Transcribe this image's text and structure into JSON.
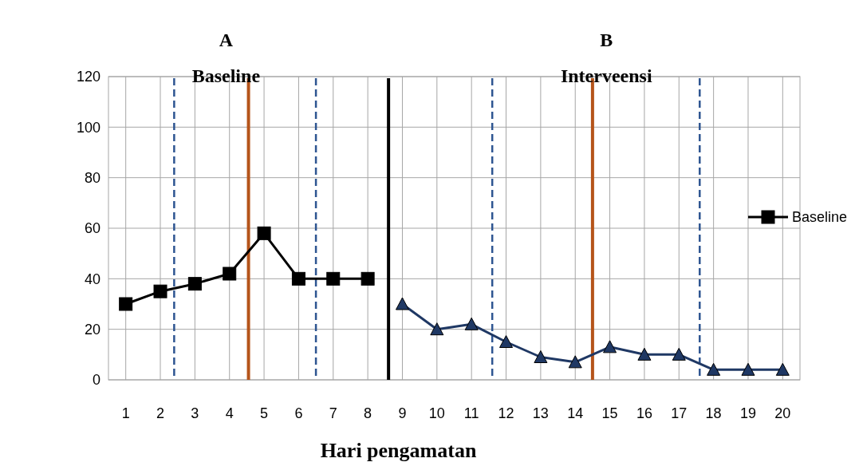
{
  "chart_data": {
    "type": "line",
    "xlabel": "Hari  pengamatan",
    "annotations": [
      "A",
      "Baseline",
      "B",
      "Interveensi"
    ],
    "xlim": [
      0.5,
      20.5
    ],
    "xticks": [
      1,
      2,
      3,
      4,
      5,
      6,
      7,
      8,
      9,
      10,
      11,
      12,
      13,
      14,
      15,
      16,
      17,
      18,
      19,
      20
    ],
    "ylim": [
      0,
      120
    ],
    "yticks": [
      0,
      20,
      40,
      60,
      80,
      100,
      120
    ],
    "series": [
      {
        "name": "Baseline",
        "color": "#000000",
        "marker": "square",
        "x": [
          1,
          2,
          3,
          4,
          5,
          6,
          7,
          8
        ],
        "values": [
          30,
          35,
          38,
          42,
          58,
          40,
          40,
          40
        ]
      },
      {
        "color": "#1f3864",
        "marker": "triangle",
        "x": [
          9,
          10,
          11,
          12,
          13,
          14,
          15,
          16,
          17,
          18,
          19,
          20
        ],
        "values": [
          30,
          20,
          22,
          15,
          9,
          7,
          13,
          10,
          10,
          4,
          4,
          4
        ]
      }
    ],
    "ref_lines": [
      {
        "axis": "x",
        "value": 2.4,
        "color": "#2e5591",
        "line_style": "dashed"
      },
      {
        "axis": "x",
        "value": 4.55,
        "color": "#b5541a",
        "line_style": "solid"
      },
      {
        "axis": "x",
        "value": 6.5,
        "color": "#2e5591",
        "line_style": "dashed"
      },
      {
        "axis": "x",
        "value": 8.6,
        "color": "#000000",
        "line_style": "solid"
      },
      {
        "axis": "x",
        "value": 11.6,
        "color": "#2e5591",
        "line_style": "dashed"
      },
      {
        "axis": "x",
        "value": 14.5,
        "color": "#b5541a",
        "line_style": "solid"
      },
      {
        "axis": "x",
        "value": 17.6,
        "color": "#2e5591",
        "line_style": "dashed"
      }
    ],
    "grid": true,
    "legend": "right",
    "line_style": "solid"
  }
}
